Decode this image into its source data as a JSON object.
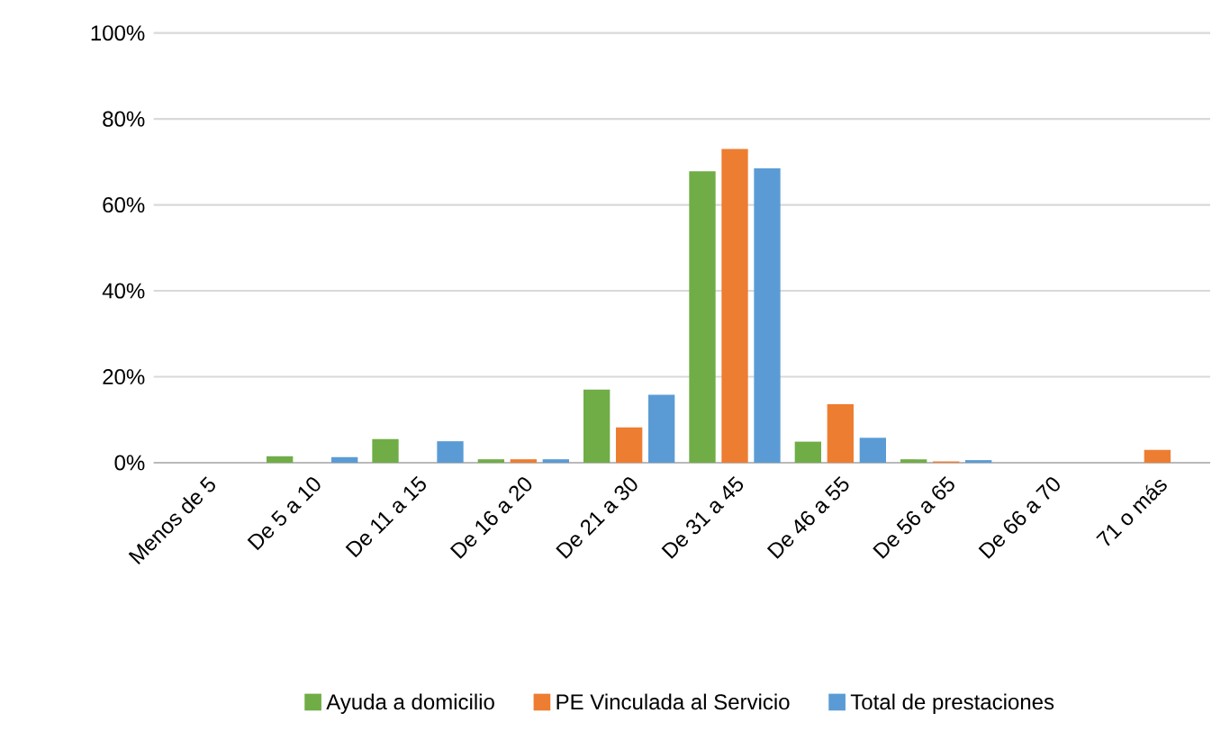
{
  "chart_data": {
    "type": "bar",
    "categories": [
      "Menos de 5",
      "De 5 a 10",
      "De 11 a 15",
      "De 16 a 20",
      "De 21 a 30",
      "De 31 a 45",
      "De 46 a 55",
      "De 56 a 65",
      "De 66 a 70",
      "71 o más"
    ],
    "series": [
      {
        "name": "Ayuda a domicilio",
        "color": "#70ad47",
        "values": [
          0,
          1.5,
          5.5,
          0.8,
          17,
          67.8,
          4.9,
          0.8,
          0,
          0
        ]
      },
      {
        "name": "PE Vinculada al Servicio",
        "color": "#ed7d31",
        "values": [
          0,
          0,
          0,
          0.8,
          8.2,
          73,
          13.6,
          0.3,
          0,
          3
        ]
      },
      {
        "name": "Total de prestaciones",
        "color": "#5b9bd5",
        "values": [
          0,
          1.3,
          5,
          0.8,
          15.8,
          68.5,
          5.8,
          0.6,
          0,
          0
        ]
      }
    ],
    "ylim": [
      0,
      100
    ],
    "yticks": [
      {
        "value": 0,
        "label": "0%"
      },
      {
        "value": 20,
        "label": "20%"
      },
      {
        "value": 40,
        "label": "40%"
      },
      {
        "value": 60,
        "label": "60%"
      },
      {
        "value": 80,
        "label": "80%"
      },
      {
        "value": 100,
        "label": "100%"
      }
    ],
    "grid": "y",
    "legend": "bottom"
  }
}
